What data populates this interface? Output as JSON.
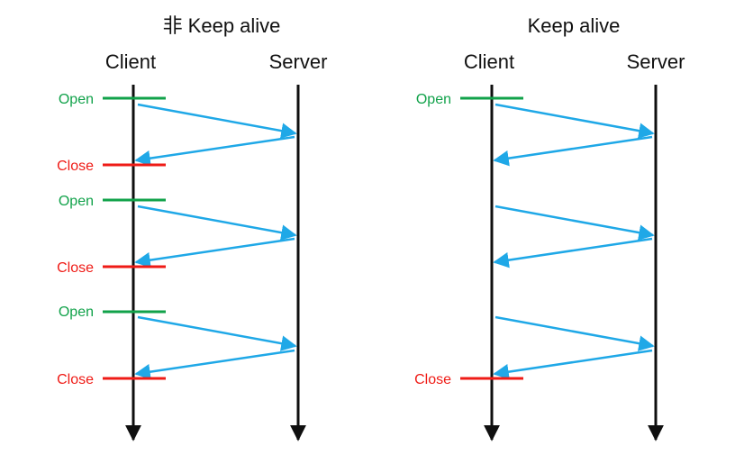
{
  "colors": {
    "open": "#11a24a",
    "close": "#ef1b16",
    "message": "#1fa8e7",
    "timeline": "#0f0f0f",
    "text": "#111111"
  },
  "diagrams": [
    {
      "title": "非 Keep alive",
      "client_label": "Client",
      "server_label": "Server",
      "events": [
        {
          "type": "open",
          "label": "Open"
        },
        {
          "type": "request"
        },
        {
          "type": "response"
        },
        {
          "type": "close",
          "label": "Close"
        },
        {
          "type": "open",
          "label": "Open"
        },
        {
          "type": "request"
        },
        {
          "type": "response"
        },
        {
          "type": "close",
          "label": "Close"
        },
        {
          "type": "open",
          "label": "Open"
        },
        {
          "type": "request"
        },
        {
          "type": "response"
        },
        {
          "type": "close",
          "label": "Close"
        }
      ]
    },
    {
      "title": "Keep alive",
      "client_label": "Client",
      "server_label": "Server",
      "events": [
        {
          "type": "open",
          "label": "Open"
        },
        {
          "type": "request"
        },
        {
          "type": "response"
        },
        {
          "type": "request"
        },
        {
          "type": "response"
        },
        {
          "type": "request"
        },
        {
          "type": "response"
        },
        {
          "type": "close",
          "label": "Close"
        }
      ]
    }
  ]
}
